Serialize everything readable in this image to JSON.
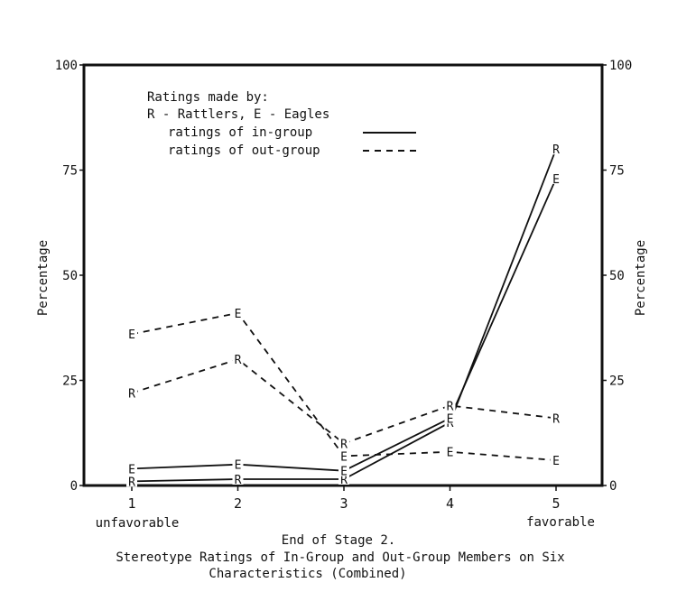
{
  "chart_data": {
    "type": "line",
    "title": "Stereotype Ratings of In-Group and Out-Group Members on Six",
    "title_line2": "Characteristics (Combined)",
    "xlabel": "End of Stage 2.",
    "ylabel": "Percentage",
    "ylabel_right": "Percentage",
    "x": [
      1,
      2,
      3,
      4,
      5
    ],
    "xticks": [
      "1",
      "2",
      "3",
      "4",
      "5"
    ],
    "x_end_labels": {
      "left": "unfavorable",
      "right": "favorable"
    },
    "ylim": [
      0,
      100
    ],
    "yticks": [
      "0",
      "25",
      "50",
      "75",
      "100"
    ],
    "grid": false,
    "legend": {
      "placement": "top-left",
      "heading": "Ratings made by:",
      "key": "R - Rattlers, E - Eagles",
      "in_group_label": "ratings of in-group",
      "out_group_label": "ratings of out-group"
    },
    "series": [
      {
        "marker": "R",
        "style": "solid",
        "values": [
          1,
          1.5,
          1.5,
          15,
          80
        ]
      },
      {
        "marker": "E",
        "style": "solid",
        "values": [
          4,
          5,
          3.5,
          16,
          73
        ]
      },
      {
        "marker": "E",
        "style": "dashed",
        "values": [
          36,
          41,
          7,
          8,
          6
        ]
      },
      {
        "marker": "R",
        "style": "dashed",
        "values": [
          22,
          30,
          10,
          19,
          16
        ]
      }
    ]
  }
}
